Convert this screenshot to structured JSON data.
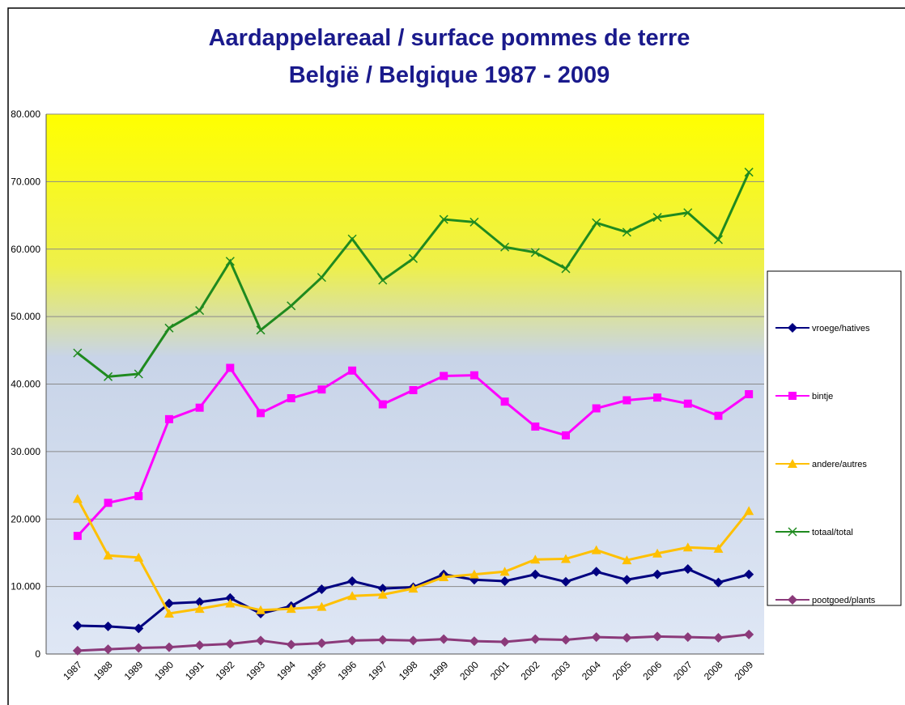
{
  "chart_data": {
    "type": "line",
    "title": [
      "Aardappelareaal / surface pommes de terre",
      "België / Belgique 1987 - 2009"
    ],
    "categories": [
      "1987",
      "1988",
      "1989",
      "1990",
      "1991",
      "1992",
      "1993",
      "1994",
      "1995",
      "1996",
      "1997",
      "1998",
      "1999",
      "2000",
      "2001",
      "2002",
      "2003",
      "2004",
      "2005",
      "2006",
      "2007",
      "2008",
      "2009"
    ],
    "series": [
      {
        "name": "vroege/hatives",
        "color": "#000080",
        "marker": "diamond",
        "values": [
          4200,
          4100,
          3800,
          7500,
          7700,
          8300,
          6000,
          7100,
          9600,
          10800,
          9700,
          9900,
          11800,
          11000,
          10800,
          11800,
          10700,
          12200,
          11000,
          11800,
          12600,
          10600,
          11800
        ]
      },
      {
        "name": "bintje",
        "color": "#ff00ff",
        "marker": "square",
        "values": [
          17500,
          22400,
          23400,
          34800,
          36500,
          42400,
          35700,
          37900,
          39200,
          42000,
          37000,
          39100,
          41200,
          41300,
          37400,
          33700,
          32400,
          36400,
          37600,
          38000,
          37100,
          35300,
          38500
        ]
      },
      {
        "name": "andere/autres",
        "color": "#ffc000",
        "marker": "triangle",
        "values": [
          23000,
          14600,
          14300,
          6000,
          6700,
          7500,
          6500,
          6700,
          7000,
          8600,
          8800,
          9700,
          11400,
          11800,
          12200,
          14000,
          14100,
          15400,
          13900,
          14900,
          15800,
          15600,
          21200
        ]
      },
      {
        "name": "totaal/total",
        "color": "#1f8a1f",
        "marker": "x",
        "values": [
          44600,
          41100,
          41500,
          48300,
          50900,
          58200,
          48000,
          51600,
          55800,
          61500,
          55400,
          58600,
          64400,
          64000,
          60300,
          59500,
          57100,
          63900,
          62500,
          64700,
          65400,
          61400,
          71400
        ]
      },
      {
        "name": "pootgoed/plants",
        "color": "#8b3a7a",
        "marker": "diamond",
        "values": [
          500,
          700,
          900,
          1000,
          1300,
          1500,
          2000,
          1400,
          1600,
          2000,
          2100,
          2000,
          2200,
          1900,
          1800,
          2200,
          2100,
          2500,
          2400,
          2600,
          2500,
          2400,
          2900
        ]
      }
    ],
    "ylim": [
      0,
      80000
    ],
    "yticks": [
      0,
      {
        "value": 10000,
        "label": "10.000"
      },
      {
        "value": 20000,
        "label": "20.000"
      },
      {
        "value": 30000,
        "label": "30.000"
      },
      {
        "value": 40000,
        "label": "40.000"
      },
      {
        "value": 50000,
        "label": "50.000"
      },
      {
        "value": 60000,
        "label": "60.000"
      },
      {
        "value": 70000,
        "label": "70.000"
      },
      {
        "value": 80000,
        "label": "80.000"
      }
    ],
    "grid": true,
    "legend": "right"
  }
}
